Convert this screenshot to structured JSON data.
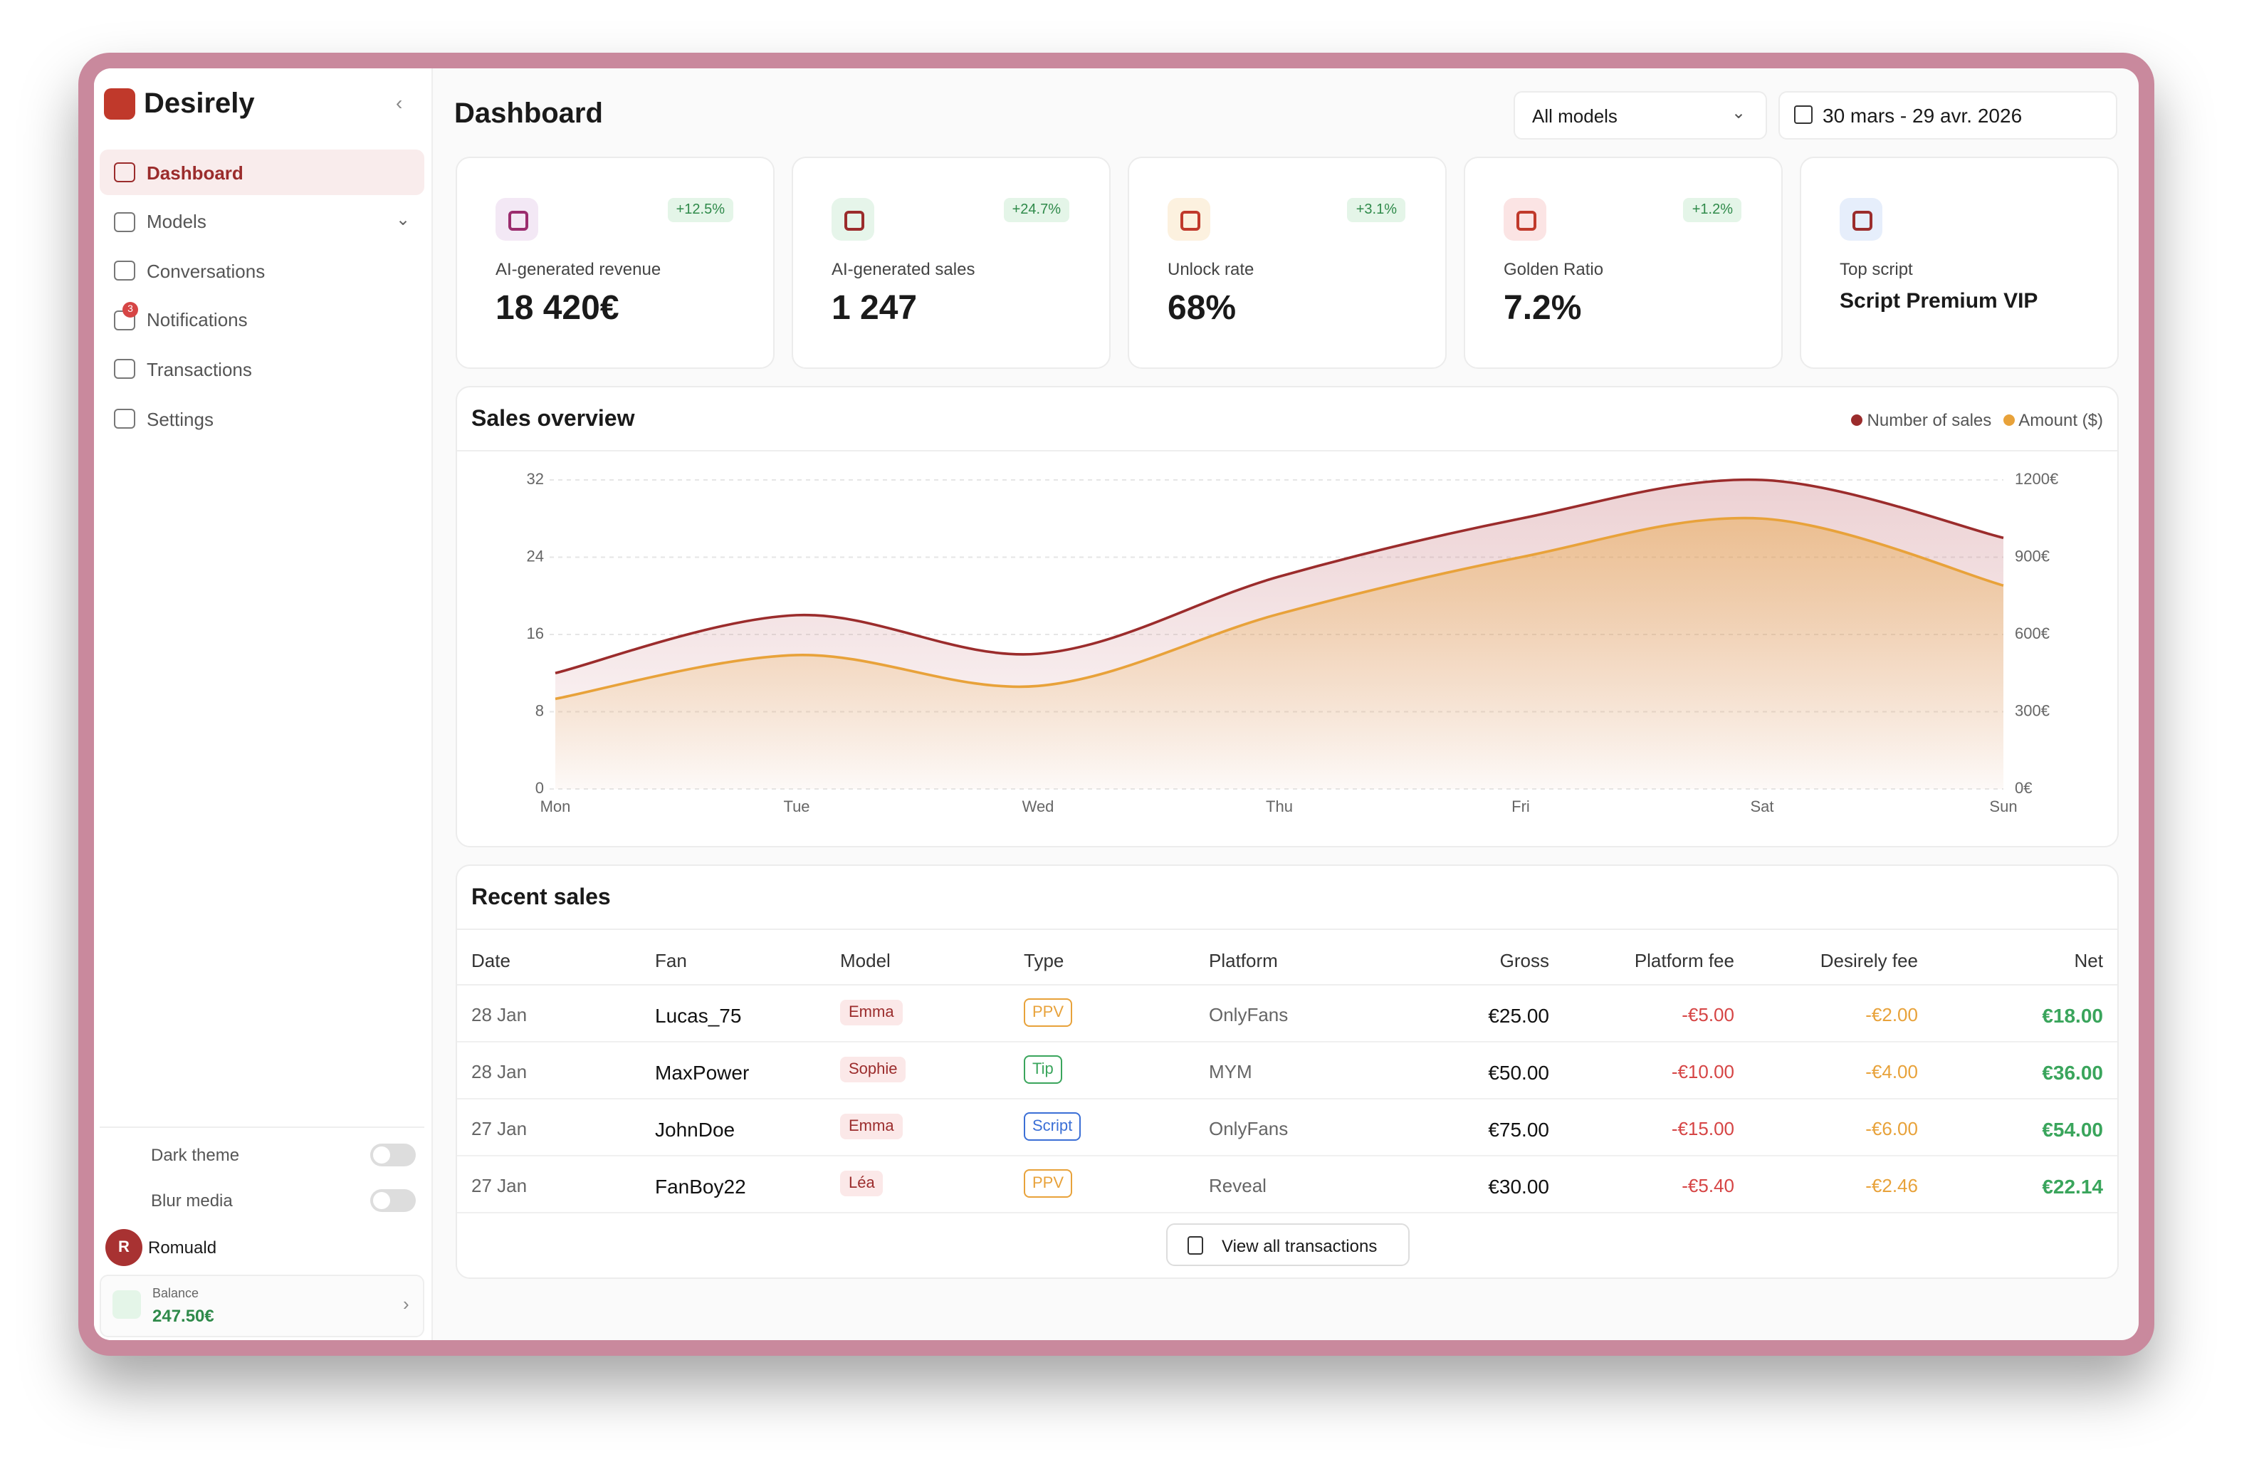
{
  "sidebar": {
    "brand": "Desirely",
    "nav": [
      "Dashboard",
      "Models",
      "Conversations",
      "Notifications",
      "Transactions",
      "Settings"
    ],
    "notification_badge": "3",
    "dark_theme": "Dark theme",
    "blur_media": "Blur media",
    "user_initial": "R",
    "user_name": "Romuald",
    "balance_label": "Balance",
    "balance_value": "247.50€"
  },
  "header": {
    "title": "Dashboard",
    "model_select": "All models",
    "date_range": "30 mars - 29 avr. 2026"
  },
  "kpis": [
    {
      "label": "AI-generated revenue",
      "value": "18 420€",
      "change": "+12.5%"
    },
    {
      "label": "AI-generated sales",
      "value": "1 247",
      "change": "+24.7%"
    },
    {
      "label": "Unlock rate",
      "value": "68%",
      "change": "+3.1%"
    },
    {
      "label": "Golden Ratio",
      "value": "7.2%",
      "change": "+1.2%"
    },
    {
      "label": "Top script",
      "value": "Script Premium VIP"
    }
  ],
  "chart_data": {
    "type": "line",
    "title": "Sales overview",
    "categories": [
      "Mon",
      "Tue",
      "Wed",
      "Thu",
      "Fri",
      "Sat",
      "Sun"
    ],
    "series": [
      {
        "name": "Number of sales",
        "color": "#9b2c2c",
        "values": [
          12,
          18,
          14,
          22,
          28,
          32,
          26
        ]
      },
      {
        "name": "Amount ($)",
        "color": "#e8a23a",
        "axis": "y2",
        "values": [
          350,
          520,
          400,
          680,
          900,
          1050,
          790
        ]
      }
    ],
    "ylim": [
      0,
      32
    ],
    "yticks": [
      0,
      8,
      16,
      24,
      32
    ],
    "y2lim": [
      0,
      1200
    ],
    "y2ticks": [
      {
        "value": 0,
        "label": "0€"
      },
      {
        "value": 300,
        "label": "300€"
      },
      {
        "value": 600,
        "label": "600€"
      },
      {
        "value": 900,
        "label": "900€"
      },
      {
        "value": 1200,
        "label": "1200€"
      }
    ],
    "grid": true,
    "legend": "top-right"
  },
  "recent_sales": {
    "title": "Recent sales",
    "columns": [
      "Date",
      "Fan",
      "Model",
      "Type",
      "Platform",
      "Gross",
      "Platform fee",
      "Desirely fee",
      "Net"
    ],
    "rows": [
      [
        "28 Jan",
        "Lucas_75",
        "Emma",
        "PPV",
        "OnlyFans",
        "€25.00",
        "-€5.00",
        "-€2.00",
        "€18.00"
      ],
      [
        "28 Jan",
        "MaxPower",
        "Sophie",
        "Tip",
        "MYM",
        "€50.00",
        "-€10.00",
        "-€4.00",
        "€36.00"
      ],
      [
        "27 Jan",
        "JohnDoe",
        "Emma",
        "Script",
        "OnlyFans",
        "€75.00",
        "-€15.00",
        "-€6.00",
        "€54.00"
      ],
      [
        "27 Jan",
        "FanBoy22",
        "Léa",
        "PPV",
        "Reveal",
        "€30.00",
        "-€5.40",
        "-€2.46",
        "€22.14"
      ]
    ],
    "button": "View all transactions"
  }
}
